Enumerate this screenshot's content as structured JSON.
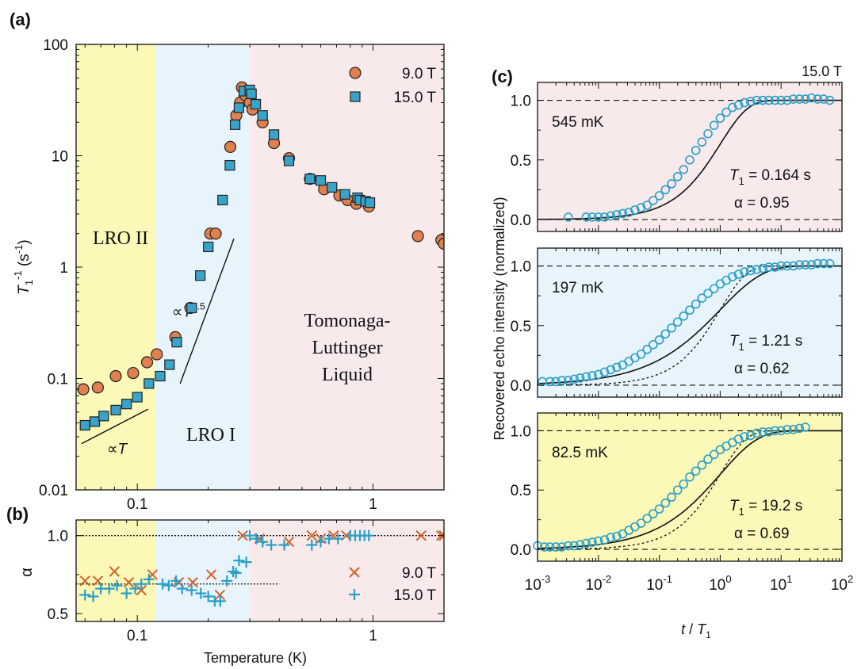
{
  "chart_data": [
    {
      "panel": "(a)",
      "type": "scatter",
      "xlabel": "",
      "ylabel": "T1^-1 (s^-1)",
      "xscale": "log",
      "yscale": "log",
      "xlim": [
        0.055,
        2.0
      ],
      "ylim": [
        0.01,
        100
      ],
      "x_ticks": [
        "0.1",
        "1"
      ],
      "y_ticks": [
        "0.01",
        "0.1",
        "1",
        "10",
        "100"
      ],
      "regions": [
        {
          "name": "LRO II",
          "x_range": [
            0.055,
            0.12
          ],
          "color": "#fbf8b8",
          "label_color": "#a69a1c"
        },
        {
          "name": "LRO I",
          "x_range": [
            0.12,
            0.3
          ],
          "color": "#e8f4fb",
          "label_color": "#7788bb"
        },
        {
          "name": "Tomonaga-Luttinger Liquid",
          "lines": [
            "Tomonaga-",
            "Luttinger",
            "Liquid"
          ],
          "x_range": [
            0.3,
            2.0
          ],
          "color": "#f8eaea",
          "label_color": "#e0714a"
        }
      ],
      "annotations": [
        {
          "text": "∝T",
          "power": "",
          "x": 0.082,
          "y": 0.021
        },
        {
          "text": "∝T",
          "power": "5.5",
          "x": 0.165,
          "y": 0.36
        }
      ],
      "guide_lines": [
        {
          "name": "∝T",
          "points": [
            [
              0.058,
              0.026
            ],
            [
              0.111,
              0.053
            ]
          ]
        },
        {
          "name": "∝T^5.5",
          "points": [
            [
              0.152,
              0.09
            ],
            [
              0.257,
              1.8
            ]
          ]
        }
      ],
      "legend": {
        "placement": "top-right",
        "entries": [
          "9.0 T",
          "15.0 T"
        ]
      },
      "series": [
        {
          "name": "9.0 T",
          "marker": "circle",
          "color": "#e0804f",
          "points": [
            [
              0.059,
              0.08
            ],
            [
              0.068,
              0.083
            ],
            [
              0.081,
              0.105
            ],
            [
              0.096,
              0.112
            ],
            [
              0.11,
              0.14
            ],
            [
              0.121,
              0.165
            ],
            [
              0.145,
              0.235
            ],
            [
              0.168,
              0.43
            ],
            [
              0.204,
              2.0
            ],
            [
              0.215,
              2.0
            ],
            [
              0.248,
              12.0
            ],
            [
              0.263,
              23.0
            ],
            [
              0.273,
              30.0
            ],
            [
              0.278,
              41.0
            ],
            [
              0.287,
              35.0
            ],
            [
              0.3,
              30.0
            ],
            [
              0.308,
              26.0
            ],
            [
              0.34,
              20.0
            ],
            [
              0.38,
              13.0
            ],
            [
              0.44,
              9.5
            ],
            [
              0.54,
              6.2
            ],
            [
              0.62,
              5.0
            ],
            [
              0.72,
              4.4
            ],
            [
              0.78,
              4.0
            ],
            [
              0.85,
              3.7
            ],
            [
              0.96,
              3.5
            ],
            [
              1.55,
              1.9
            ],
            [
              1.95,
              1.75
            ],
            [
              2.0,
              1.62
            ]
          ]
        },
        {
          "name": "15.0 T",
          "marker": "square",
          "color": "#3aa3c9",
          "points": [
            [
              0.06,
              0.038
            ],
            [
              0.066,
              0.041
            ],
            [
              0.072,
              0.046
            ],
            [
              0.081,
              0.052
            ],
            [
              0.09,
              0.059
            ],
            [
              0.1,
              0.068
            ],
            [
              0.112,
              0.09
            ],
            [
              0.125,
              0.105
            ],
            [
              0.137,
              0.133
            ],
            [
              0.147,
              0.212
            ],
            [
              0.17,
              0.43
            ],
            [
              0.185,
              0.84
            ],
            [
              0.2,
              1.52
            ],
            [
              0.23,
              4.0
            ],
            [
              0.247,
              8.2
            ],
            [
              0.26,
              19.0
            ],
            [
              0.27,
              27.0
            ],
            [
              0.283,
              38.0
            ],
            [
              0.3,
              39.0
            ],
            [
              0.305,
              36.0
            ],
            [
              0.318,
              29.0
            ],
            [
              0.34,
              23.0
            ],
            [
              0.38,
              15.5
            ],
            [
              0.44,
              9.0
            ],
            [
              0.54,
              6.2
            ],
            [
              0.6,
              6.0
            ],
            [
              0.67,
              5.2
            ],
            [
              0.76,
              4.5
            ],
            [
              0.86,
              4.2
            ],
            [
              0.88,
              4.0
            ],
            [
              0.93,
              3.9
            ],
            [
              0.97,
              3.8
            ]
          ]
        }
      ]
    },
    {
      "panel": "(b)",
      "type": "scatter",
      "xlabel": "Temperature (K)",
      "ylabel": "α",
      "xscale": "log",
      "xlim": [
        0.055,
        2.0
      ],
      "ylim": [
        0.45,
        1.1
      ],
      "x_ticks": [
        "0.1",
        "1"
      ],
      "y_ticks": [
        "0.5",
        "1.0"
      ],
      "reference_lines": [
        {
          "y": 1.0,
          "x_range": [
            0.055,
            2.0
          ]
        },
        {
          "y": 0.69,
          "x_range": [
            0.055,
            0.4
          ]
        }
      ],
      "legend": {
        "placement": "lower-right",
        "entries": [
          "9.0 T",
          "15.0 T"
        ]
      },
      "series": [
        {
          "name": "9.0 T",
          "marker": "x",
          "color": "#d2622e",
          "points": [
            [
              0.06,
              0.71
            ],
            [
              0.068,
              0.71
            ],
            [
              0.08,
              0.77
            ],
            [
              0.092,
              0.7
            ],
            [
              0.104,
              0.65
            ],
            [
              0.116,
              0.75
            ],
            [
              0.15,
              0.7
            ],
            [
              0.172,
              0.7
            ],
            [
              0.206,
              0.75
            ],
            [
              0.224,
              0.62
            ],
            [
              0.28,
              1.0
            ],
            [
              0.33,
              0.98
            ],
            [
              0.44,
              0.96
            ],
            [
              0.55,
              1.0
            ],
            [
              0.6,
              0.98
            ],
            [
              0.68,
              1.0
            ],
            [
              0.77,
              1.0
            ],
            [
              1.6,
              1.0
            ],
            [
              1.95,
              1.0
            ],
            [
              2.0,
              1.0
            ]
          ]
        },
        {
          "name": "15.0 T",
          "marker": "plus",
          "color": "#2a9fc8",
          "points": [
            [
              0.06,
              0.62
            ],
            [
              0.065,
              0.61
            ],
            [
              0.07,
              0.66
            ],
            [
              0.076,
              0.66
            ],
            [
              0.082,
              0.68
            ],
            [
              0.09,
              0.63
            ],
            [
              0.098,
              0.66
            ],
            [
              0.104,
              0.69
            ],
            [
              0.112,
              0.72
            ],
            [
              0.128,
              0.69
            ],
            [
              0.136,
              0.68
            ],
            [
              0.146,
              0.71
            ],
            [
              0.155,
              0.66
            ],
            [
              0.17,
              0.65
            ],
            [
              0.186,
              0.63
            ],
            [
              0.2,
              0.61
            ],
            [
              0.213,
              0.58
            ],
            [
              0.225,
              0.58
            ],
            [
              0.24,
              0.71
            ],
            [
              0.255,
              0.77
            ],
            [
              0.262,
              0.76
            ],
            [
              0.27,
              0.84
            ],
            [
              0.29,
              0.83
            ],
            [
              0.3,
              1.0
            ],
            [
              0.32,
              0.98
            ],
            [
              0.34,
              0.96
            ],
            [
              0.37,
              0.94
            ],
            [
              0.42,
              0.94
            ],
            [
              0.55,
              0.94
            ],
            [
              0.6,
              0.96
            ],
            [
              0.65,
              0.98
            ],
            [
              0.71,
              0.98
            ],
            [
              0.8,
              1.0
            ],
            [
              0.84,
              1.0
            ],
            [
              0.88,
              1.0
            ],
            [
              0.92,
              1.0
            ],
            [
              0.96,
              1.0
            ]
          ]
        }
      ]
    },
    {
      "panel": "(c)",
      "type": "line",
      "xlabel": "t / T1",
      "ylabel": "Recovered echo intensity (normalized)",
      "xscale": "log",
      "xlim": [
        0.001,
        100
      ],
      "ylim": [
        -0.1,
        1.15
      ],
      "x_ticks": [
        "-3",
        "-2",
        "-1",
        "0",
        "1",
        "2"
      ],
      "y_ticks": [
        "0.0",
        "0.5",
        "1.0"
      ],
      "field_label": "15.0 T",
      "subpanels": [
        {
          "temp": "545 mK",
          "T1_value": "= 0.164 s",
          "alpha_label": "α = 0.95",
          "alpha": 0.95,
          "bg": "#f8eaea",
          "points_t": [
            0.0032,
            0.0063,
            0.0079,
            0.01,
            0.0126,
            0.0159,
            0.02,
            0.0251,
            0.0316,
            0.0398,
            0.0501,
            0.0631,
            0.0794,
            0.1,
            0.126,
            0.159,
            0.2,
            0.251,
            0.316,
            0.398,
            0.501,
            0.631,
            0.794,
            1,
            1.26,
            1.59,
            2,
            2.51,
            3.16,
            3.98,
            5.01,
            6.31,
            7.94,
            10,
            12.6,
            15.9,
            20,
            25.1,
            31.6,
            39.8,
            50.1,
            63.1
          ],
          "points_y": [
            0.02,
            0.02,
            0.02,
            0.02,
            0.02,
            0.03,
            0.04,
            0.05,
            0.06,
            0.08,
            0.1,
            0.12,
            0.16,
            0.2,
            0.25,
            0.3,
            0.36,
            0.42,
            0.5,
            0.58,
            0.65,
            0.72,
            0.79,
            0.85,
            0.9,
            0.94,
            0.96,
            0.98,
            0.99,
            1.0,
            1.0,
            1.0,
            1.0,
            1.0,
            1.0,
            1.01,
            1.01,
            1.01,
            1.02,
            1.01,
            1.01,
            1.0
          ]
        },
        {
          "temp": "197 mK",
          "T1_value": "= 1.21 s",
          "alpha_label": "α = 0.62",
          "alpha": 0.62,
          "bg": "#e8f4fb",
          "points_t": [
            0.0012,
            0.0016,
            0.002,
            0.0025,
            0.0032,
            0.004,
            0.005,
            0.0063,
            0.0079,
            0.01,
            0.0126,
            0.0159,
            0.02,
            0.0251,
            0.0316,
            0.0398,
            0.0501,
            0.0631,
            0.0794,
            0.1,
            0.126,
            0.159,
            0.2,
            0.251,
            0.316,
            0.398,
            0.501,
            0.631,
            0.794,
            1,
            1.26,
            1.59,
            2,
            2.51,
            3.16,
            3.98,
            5.01,
            6.31,
            7.94,
            10,
            12.6,
            15.9,
            20,
            25.1,
            31.6,
            39.8,
            50.1,
            63.1
          ],
          "points_y": [
            0.03,
            0.03,
            0.03,
            0.04,
            0.04,
            0.05,
            0.06,
            0.07,
            0.08,
            0.09,
            0.11,
            0.13,
            0.15,
            0.17,
            0.2,
            0.23,
            0.26,
            0.3,
            0.34,
            0.38,
            0.43,
            0.48,
            0.53,
            0.58,
            0.63,
            0.68,
            0.73,
            0.77,
            0.81,
            0.85,
            0.88,
            0.91,
            0.93,
            0.95,
            0.96,
            0.97,
            0.98,
            0.99,
            0.99,
            1.0,
            1.0,
            1.0,
            1.01,
            1.01,
            1.01,
            1.02,
            1.02,
            1.02
          ]
        },
        {
          "temp": "82.5 mK",
          "T1_value": "= 19.2 s",
          "alpha_label": "α = 0.69",
          "alpha": 0.69,
          "bg": "#fbf8b8",
          "points_t": [
            0.001,
            0.0013,
            0.0016,
            0.002,
            0.0025,
            0.0032,
            0.004,
            0.005,
            0.0063,
            0.0079,
            0.01,
            0.0126,
            0.0159,
            0.02,
            0.0251,
            0.0316,
            0.0398,
            0.0501,
            0.0631,
            0.0794,
            0.1,
            0.126,
            0.159,
            0.2,
            0.251,
            0.316,
            0.398,
            0.501,
            0.631,
            0.794,
            1,
            1.26,
            1.59,
            2,
            2.51,
            3.16,
            3.98,
            5.01,
            6.31,
            7.94,
            10,
            12.6,
            15.9,
            20,
            25.1
          ],
          "points_y": [
            0.03,
            0.02,
            0.02,
            0.02,
            0.02,
            0.03,
            0.03,
            0.04,
            0.05,
            0.06,
            0.07,
            0.08,
            0.1,
            0.11,
            0.13,
            0.16,
            0.19,
            0.22,
            0.26,
            0.3,
            0.34,
            0.39,
            0.44,
            0.5,
            0.55,
            0.61,
            0.66,
            0.71,
            0.76,
            0.8,
            0.84,
            0.87,
            0.9,
            0.93,
            0.95,
            0.96,
            0.98,
            0.99,
            0.99,
            1.0,
            1.0,
            1.01,
            1.01,
            1.02,
            1.03
          ]
        }
      ]
    }
  ]
}
